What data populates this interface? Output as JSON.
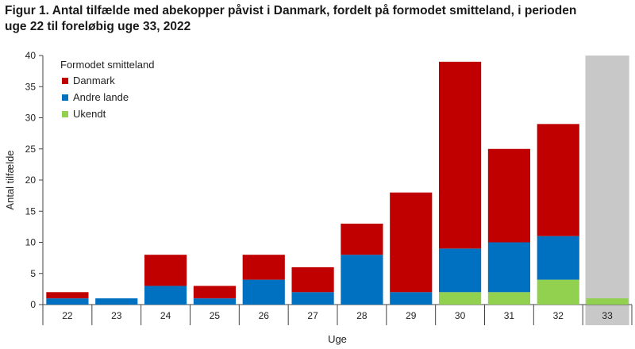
{
  "title_line1": "Figur 1. Antal tilfælde med abekopper påvist i Danmark, fordelt på formodet smitteland, i perioden",
  "title_line2": "uge 22 til foreløbig uge 33, 2022",
  "chart_data": {
    "type": "bar",
    "stacked": true,
    "xlabel": "Uge",
    "ylabel": "Antal tilfælde",
    "ylim": [
      0,
      40
    ],
    "yticks": [
      0,
      5,
      10,
      15,
      20,
      25,
      30,
      35,
      40
    ],
    "categories": [
      "22",
      "23",
      "24",
      "25",
      "26",
      "27",
      "28",
      "29",
      "30",
      "31",
      "32",
      "33"
    ],
    "legend_title": "Formodet smitteland",
    "legend_position": "top-left",
    "preliminary_category": "33",
    "series": [
      {
        "name": "Ukendt",
        "color": "#92d050",
        "values": [
          0,
          0,
          0,
          0,
          0,
          0,
          0,
          0,
          2,
          2,
          4,
          1
        ]
      },
      {
        "name": "Andre lande",
        "color": "#0070c0",
        "values": [
          1,
          1,
          3,
          1,
          4,
          2,
          8,
          2,
          7,
          8,
          7,
          0
        ]
      },
      {
        "name": "Danmark",
        "color": "#c00000",
        "values": [
          1,
          0,
          5,
          2,
          4,
          4,
          5,
          16,
          30,
          15,
          18,
          0
        ]
      }
    ],
    "legend_order": [
      "Danmark",
      "Andre lande",
      "Ukendt"
    ],
    "highlight_color": "#c8c8c8"
  }
}
